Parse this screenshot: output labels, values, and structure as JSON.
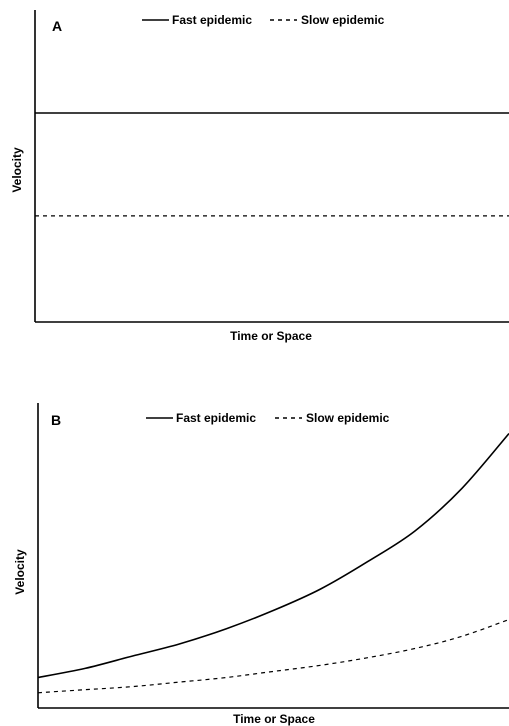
{
  "chart_data": [
    {
      "panel": "A",
      "type": "line",
      "xlabel": "Time or Space",
      "ylabel": "Velocity",
      "xlim": [
        0,
        1
      ],
      "ylim": [
        0,
        1
      ],
      "grid": false,
      "legend_position": "top-center",
      "x": [
        0,
        1
      ],
      "series": [
        {
          "name": "Fast epidemic",
          "style": "solid",
          "values": [
            0.67,
            0.67
          ]
        },
        {
          "name": "Slow epidemic",
          "style": "dashed",
          "values": [
            0.34,
            0.34
          ]
        }
      ]
    },
    {
      "panel": "B",
      "type": "line",
      "xlabel": "Time or Space",
      "ylabel": "Velocity",
      "xlim": [
        0,
        1
      ],
      "ylim": [
        0,
        1
      ],
      "grid": false,
      "legend_position": "top-center",
      "x": [
        0,
        0.1,
        0.2,
        0.3,
        0.4,
        0.5,
        0.6,
        0.7,
        0.8,
        0.9,
        1
      ],
      "series": [
        {
          "name": "Fast epidemic",
          "style": "solid",
          "values": [
            0.1,
            0.13,
            0.17,
            0.21,
            0.26,
            0.32,
            0.39,
            0.48,
            0.58,
            0.72,
            0.9
          ]
        },
        {
          "name": "Slow epidemic",
          "style": "dashed",
          "values": [
            0.05,
            0.06,
            0.07,
            0.085,
            0.1,
            0.12,
            0.14,
            0.165,
            0.195,
            0.235,
            0.29
          ]
        }
      ]
    }
  ]
}
